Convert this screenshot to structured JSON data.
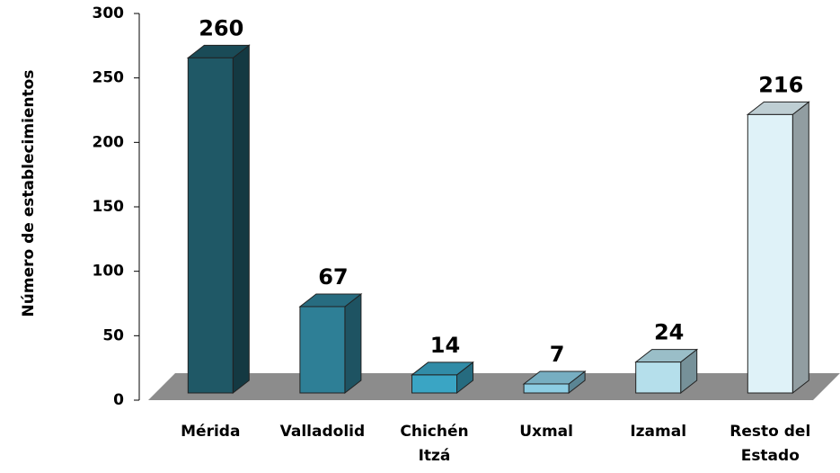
{
  "chart_data": {
    "type": "bar3d",
    "y_axis_label": "Número de establecimientos",
    "categories": [
      "Mérida",
      "Valladolid",
      "Chichén Itzá",
      "Uxmal",
      "Izamal",
      "Resto del Estado"
    ],
    "values": [
      260,
      67,
      14,
      7,
      24,
      216
    ],
    "colors": [
      "#1f5866",
      "#2e7f96",
      "#3aa5c4",
      "#8ccde3",
      "#b5dfeb",
      "#dff2f8"
    ],
    "ylim": [
      0,
      300
    ],
    "yticks": [
      0,
      50,
      100,
      150,
      200,
      250,
      300
    ],
    "grid": false
  }
}
